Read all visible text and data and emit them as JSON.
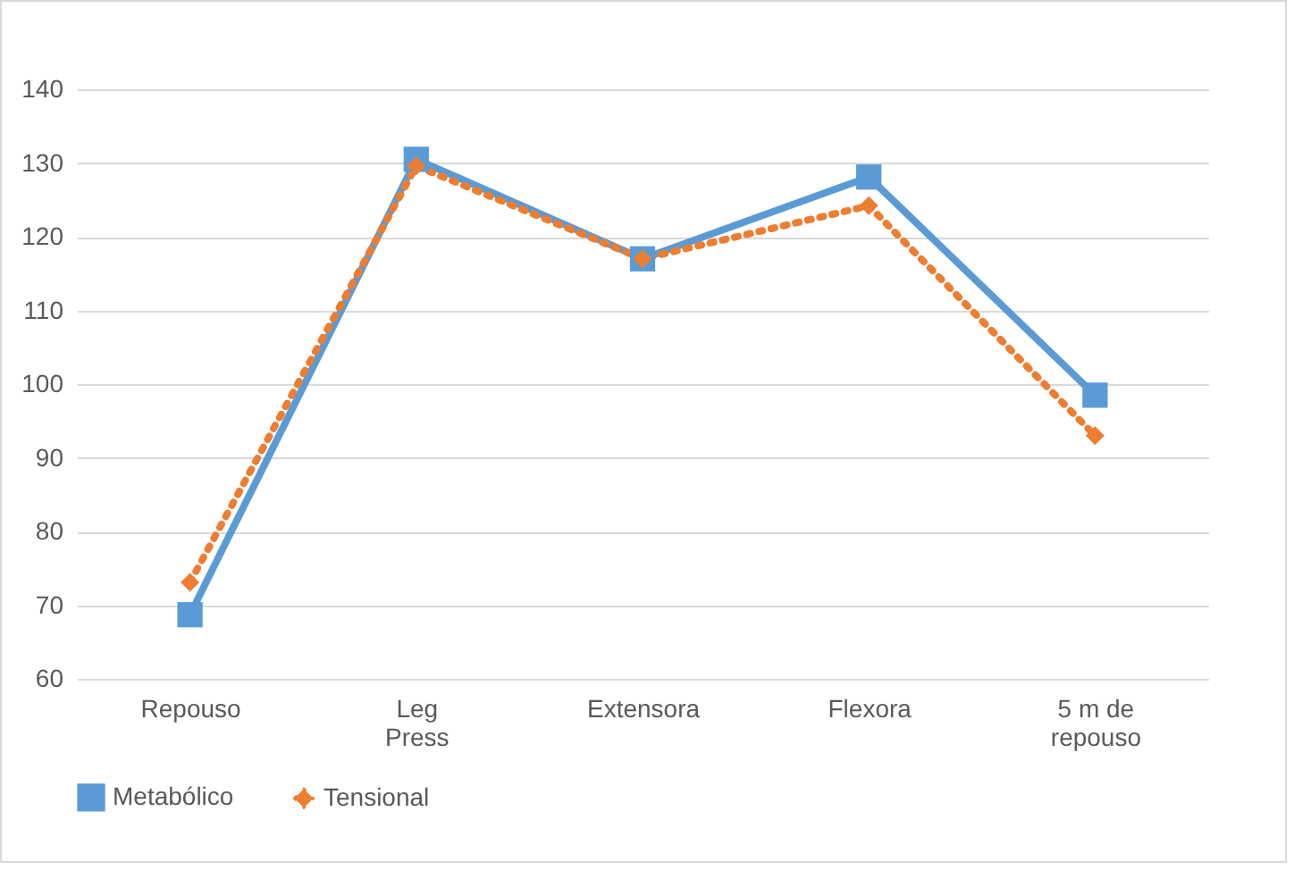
{
  "chart_data": {
    "type": "line",
    "categories": [
      "Repouso",
      "Leg Press",
      "Extensora",
      "Flexora",
      "5 m de repouso"
    ],
    "series": [
      {
        "name": "Metabólico",
        "color": "#5b9bd5",
        "marker": "square",
        "line_style": "solid",
        "values": [
          68.7,
          130.5,
          117,
          128.1,
          98.5
        ]
      },
      {
        "name": "Tensional",
        "color": "#ed7d31",
        "marker": "diamond",
        "line_style": "dotted",
        "values": [
          73.1,
          129.6,
          117,
          124.2,
          93
        ]
      }
    ],
    "ylim": [
      60,
      140
    ],
    "yticks": [
      60,
      70,
      80,
      90,
      100,
      110,
      120,
      130,
      140
    ],
    "grid": "y",
    "legend": "bottom"
  }
}
